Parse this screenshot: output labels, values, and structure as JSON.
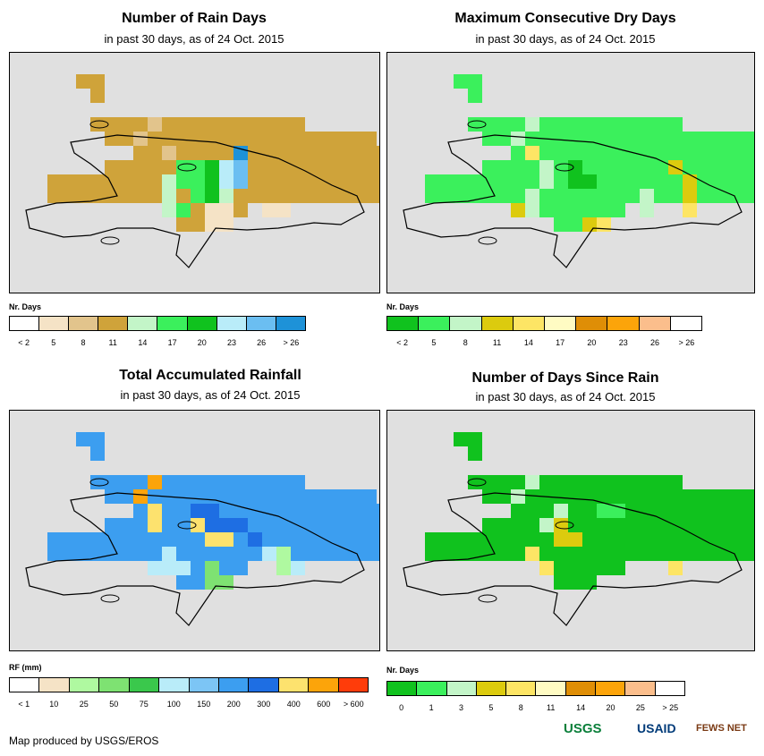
{
  "panels": [
    {
      "title": "Number of Rain Days",
      "subtitle": "in past 30 days, as of 24 Oct. 2015",
      "legend_title": "Nr. Days",
      "legend_labels": [
        "< 2",
        "5",
        "8",
        "11",
        "14",
        "17",
        "20",
        "23",
        "26",
        "> 26"
      ],
      "legend_colors": [
        "#ffffff",
        "#f5e3c6",
        "#e2c48c",
        "#cfa33a",
        "#c3f5c8",
        "#3bf05c",
        "#10c21e",
        "#b9ecf9",
        "#6bbef1",
        "#1e92d8"
      ],
      "base_cell": "#cfa33a",
      "regions": [
        {
          "cells": [
            [
              0,
              1
            ],
            [
              1,
              0
            ],
            [
              2,
              2
            ]
          ],
          "color": "#e2c48c"
        },
        {
          "cells": [
            [
              3,
              3
            ],
            [
              3,
              4
            ],
            [
              4,
              3
            ],
            [
              4,
              4
            ],
            [
              5,
              4
            ],
            [
              6,
              3
            ]
          ],
          "color": "#3bf05c"
        },
        {
          "cells": [
            [
              3,
              5
            ],
            [
              4,
              5
            ],
            [
              5,
              5
            ]
          ],
          "color": "#10c21e"
        },
        {
          "cells": [
            [
              4,
              2
            ],
            [
              5,
              2
            ],
            [
              6,
              2
            ],
            [
              5,
              6
            ]
          ],
          "color": "#c3f5c8"
        },
        {
          "cells": [
            [
              3,
              6
            ],
            [
              4,
              6
            ]
          ],
          "color": "#b9ecf9"
        },
        {
          "cells": [
            [
              3,
              7
            ],
            [
              4,
              7
            ]
          ],
          "color": "#6bbef1"
        },
        {
          "cells": [
            [
              2,
              7
            ]
          ],
          "color": "#1e92d8"
        },
        {
          "cells": [
            [
              6,
              5
            ],
            [
              6,
              6
            ],
            [
              7,
              6
            ],
            [
              7,
              5
            ],
            [
              6,
              9
            ],
            [
              6,
              10
            ]
          ],
          "color": "#f5e3c6"
        }
      ]
    },
    {
      "title": "Maximum Consecutive Dry Days",
      "subtitle": "in past 30 days, as of 24 Oct. 2015",
      "legend_title": "Nr. Days",
      "legend_labels": [
        "< 2",
        "5",
        "8",
        "11",
        "14",
        "17",
        "20",
        "23",
        "26",
        "> 26"
      ],
      "legend_colors": [
        "#10c21e",
        "#3bf05c",
        "#c3f5c8",
        "#dccb0e",
        "#fde565",
        "#fffbc3",
        "#df8e06",
        "#fca40a",
        "#fbbe8c",
        "#ffffff"
      ],
      "base_cell": "#3bf05c",
      "regions": [
        {
          "cells": [
            [
              0,
              1
            ],
            [
              1,
              0
            ],
            [
              3,
              2
            ],
            [
              4,
              2
            ],
            [
              5,
              1
            ],
            [
              6,
              1
            ],
            [
              5,
              9
            ],
            [
              6,
              9
            ]
          ],
          "color": "#c3f5c8"
        },
        {
          "cells": [
            [
              2,
              1
            ],
            [
              7,
              6
            ],
            [
              6,
              12
            ]
          ],
          "color": "#fde565"
        },
        {
          "cells": [
            [
              4,
              12
            ],
            [
              5,
              12
            ],
            [
              3,
              11
            ],
            [
              6,
              0
            ],
            [
              7,
              5
            ]
          ],
          "color": "#dccb0e"
        },
        {
          "cells": [
            [
              3,
              4
            ],
            [
              4,
              4
            ],
            [
              4,
              5
            ]
          ],
          "color": "#10c21e"
        }
      ]
    },
    {
      "title": "Total Accumulated Rainfall",
      "subtitle": "in past 30 days, as of 24 Oct. 2015",
      "legend_title": "RF (mm)",
      "legend_labels": [
        "< 1",
        "10",
        "25",
        "50",
        "75",
        "100",
        "150",
        "200",
        "300",
        "400",
        "600",
        "> 600"
      ],
      "legend_colors": [
        "#ffffff",
        "#f5e3c6",
        "#aff9a0",
        "#7ee272",
        "#3ac84c",
        "#b9ecf9",
        "#7cc5f5",
        "#3c9ef0",
        "#1e6ee3",
        "#fde26e",
        "#fca40a",
        "#ff3c0a"
      ],
      "base_cell": "#3c9ef0",
      "regions": [
        {
          "cells": [
            [
              0,
              1
            ],
            [
              1,
              0
            ]
          ],
          "color": "#fca40a"
        },
        {
          "cells": [
            [
              2,
              1
            ],
            [
              3,
              1
            ],
            [
              3,
              4
            ],
            [
              4,
              5
            ],
            [
              4,
              6
            ]
          ],
          "color": "#fde26e"
        },
        {
          "cells": [
            [
              2,
              4
            ],
            [
              2,
              5
            ],
            [
              3,
              5
            ],
            [
              3,
              6
            ],
            [
              3,
              7
            ],
            [
              4,
              8
            ]
          ],
          "color": "#1e6ee3"
        },
        {
          "cells": [
            [
              5,
              2
            ],
            [
              6,
              1
            ],
            [
              6,
              2
            ],
            [
              6,
              3
            ],
            [
              5,
              9
            ],
            [
              6,
              11
            ]
          ],
          "color": "#b9ecf9"
        },
        {
          "cells": [
            [
              6,
              5
            ],
            [
              7,
              5
            ],
            [
              7,
              6
            ]
          ],
          "color": "#7ee272"
        },
        {
          "cells": [
            [
              5,
              10
            ],
            [
              6,
              10
            ]
          ],
          "color": "#aff9a0"
        }
      ]
    },
    {
      "title": "Number of Days Since Rain",
      "subtitle": "in past 30 days, as of 24 Oct. 2015",
      "legend_title": "Nr. Days",
      "legend_labels": [
        "0",
        "1",
        "3",
        "5",
        "8",
        "11",
        "14",
        "20",
        "25",
        "> 25"
      ],
      "legend_colors": [
        "#10c21e",
        "#3bf05c",
        "#c3f5c8",
        "#dccb0e",
        "#fde565",
        "#fffbc3",
        "#df8e06",
        "#fca40a",
        "#fbbe8c",
        "#ffffff"
      ],
      "base_cell": "#10c21e",
      "regions": [
        {
          "cells": [
            [
              0,
              1
            ],
            [
              1,
              0
            ],
            [
              3,
              2
            ],
            [
              2,
              3
            ]
          ],
          "color": "#c3f5c8"
        },
        {
          "cells": [
            [
              3,
              3
            ],
            [
              4,
              3
            ],
            [
              4,
              4
            ]
          ],
          "color": "#dccb0e"
        },
        {
          "cells": [
            [
              5,
              1
            ],
            [
              6,
              2
            ],
            [
              6,
              11
            ]
          ],
          "color": "#fde565"
        },
        {
          "cells": [
            [
              2,
              6
            ],
            [
              2,
              7
            ]
          ],
          "color": "#3bf05c"
        }
      ]
    }
  ],
  "credit": "Map produced by USGS/EROS",
  "logos": [
    "USGS",
    "USAID",
    "FEWS NET"
  ],
  "logo_colors": [
    "#0a7f3a",
    "#003b79",
    "#7a3a14"
  ]
}
